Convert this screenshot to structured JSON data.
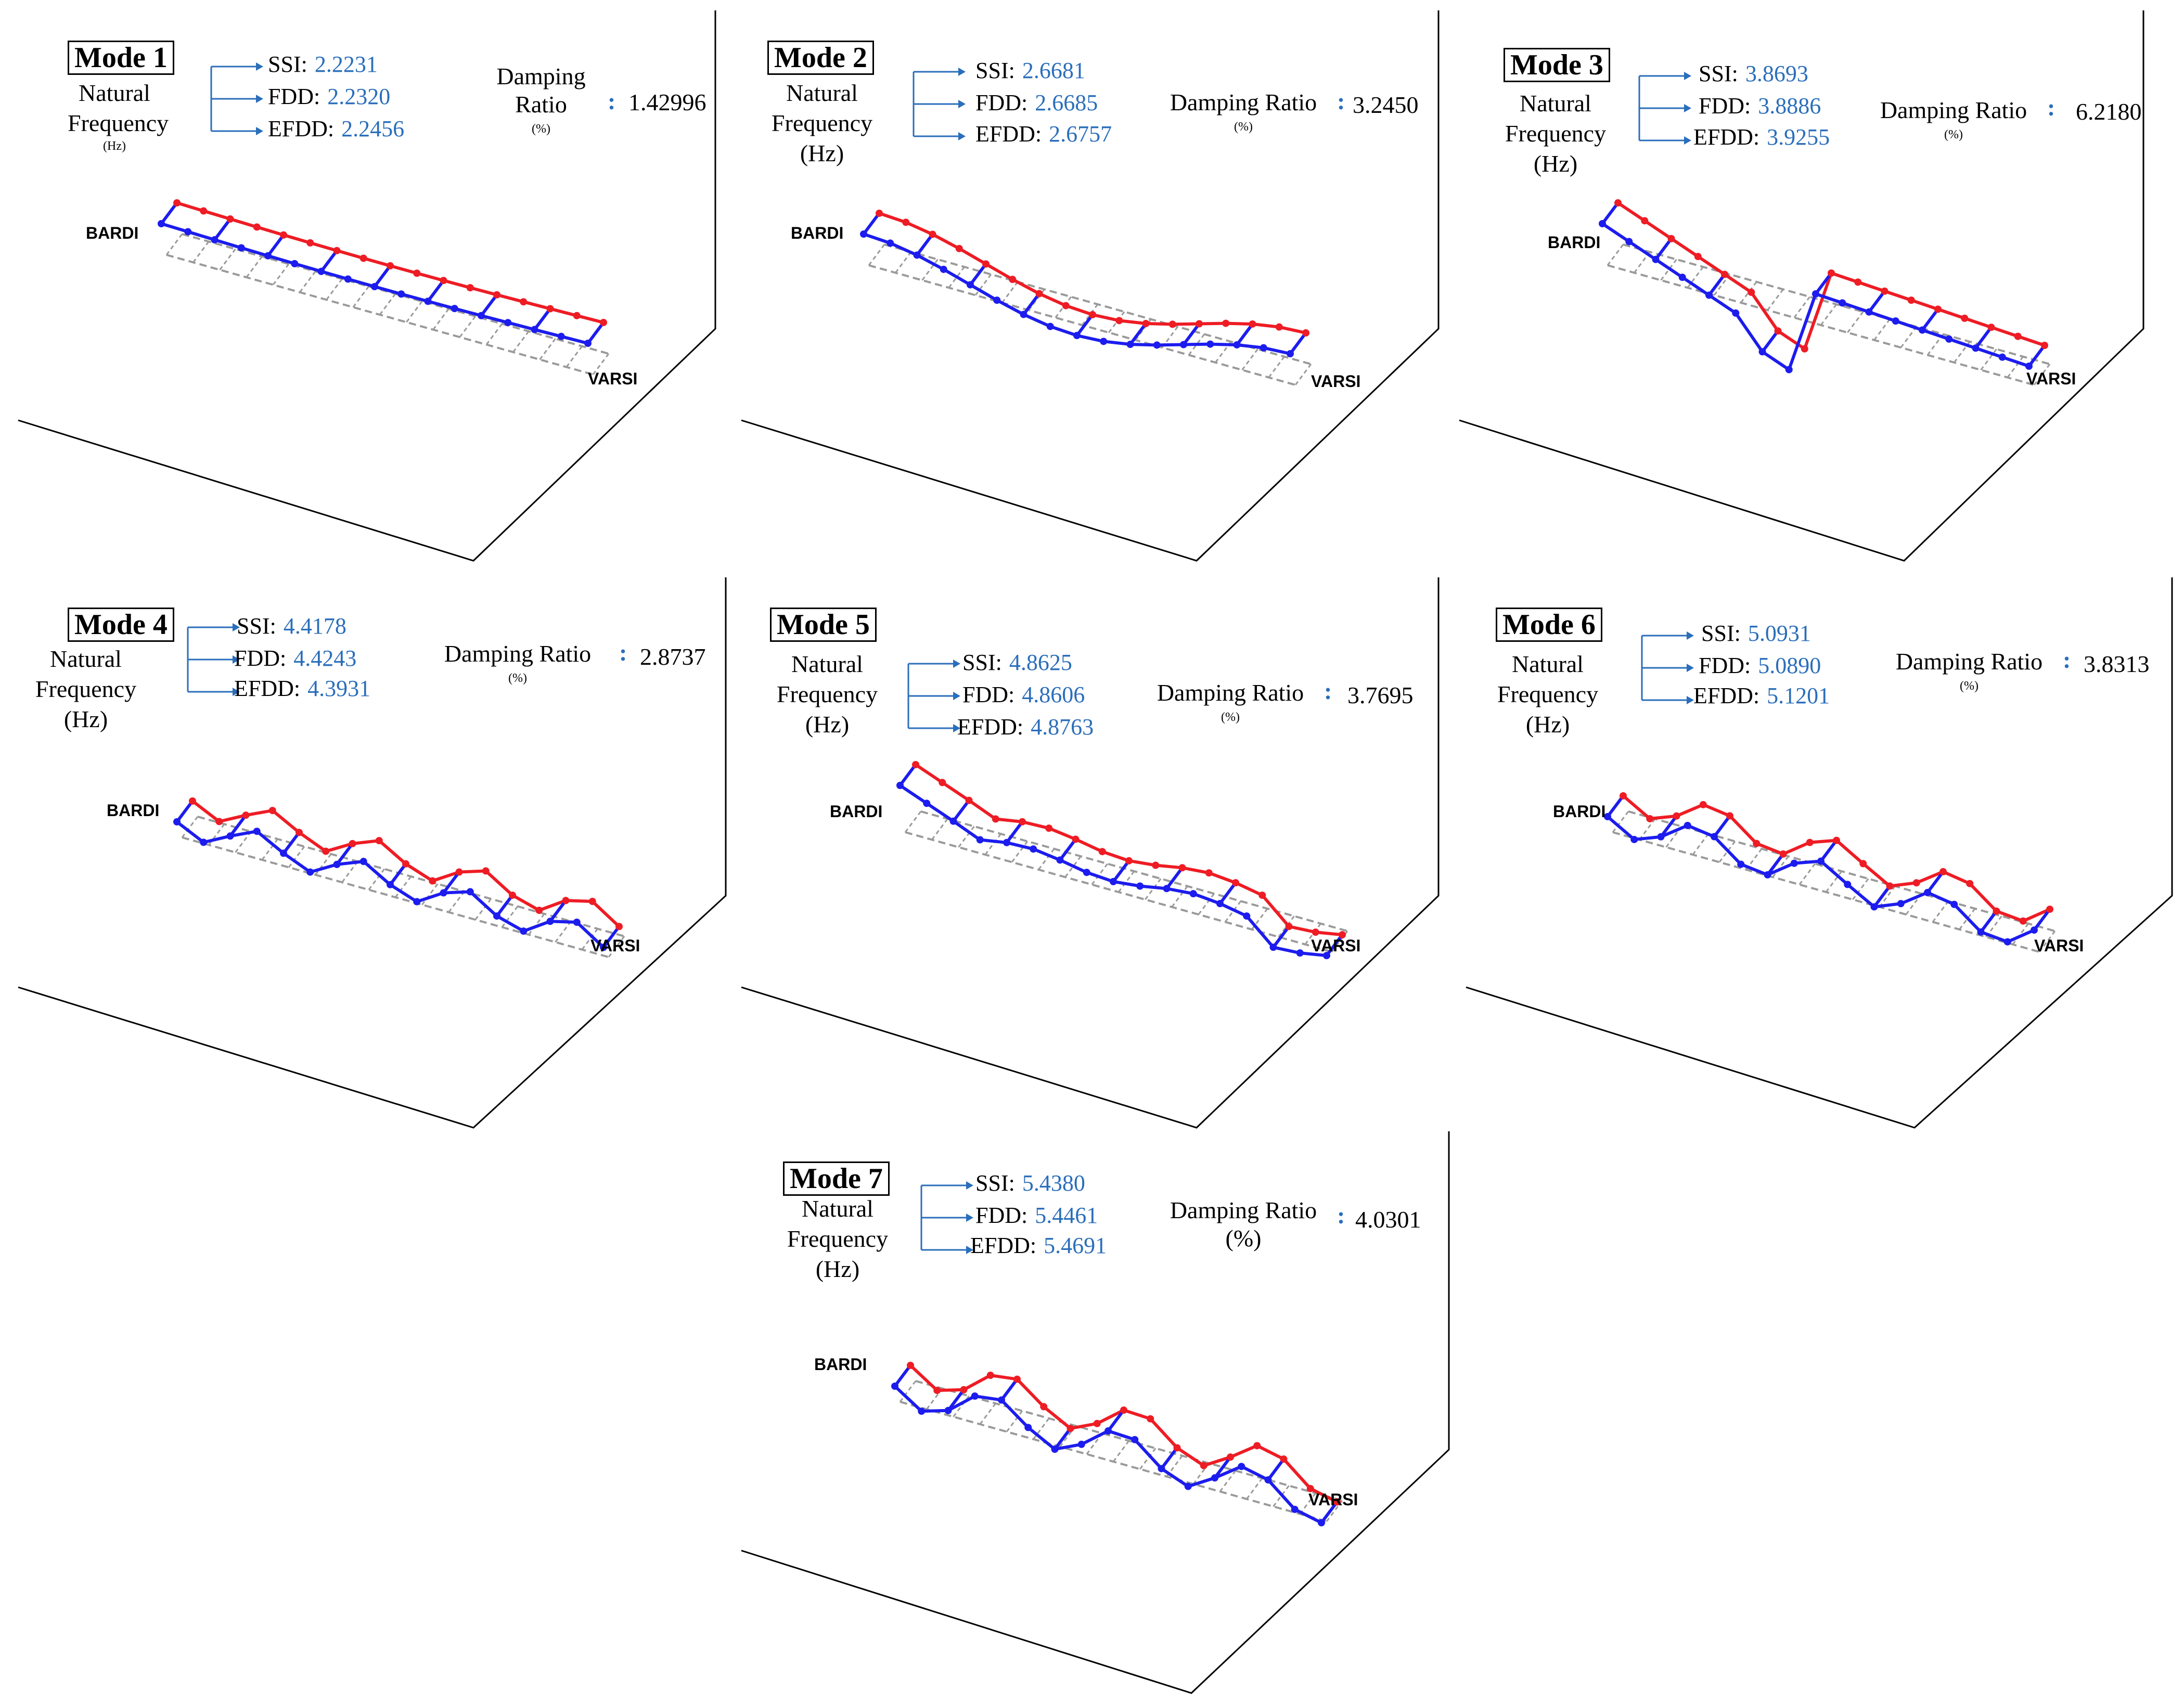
{
  "labels": {
    "natural": "Natural",
    "frequency": "Frequency",
    "hz": "(Hz)",
    "damping": "Damping",
    "ratio": "Ratio",
    "damping_ratio": "Damping Ratio",
    "percent": "(%)",
    "colon": ":",
    "ssi": "SSI:",
    "fdd": "FDD:",
    "efdd": "EFDD:",
    "start": "BARDI",
    "end": "VARSI"
  },
  "colors": {
    "deformed_top": "#ee1c24",
    "deformed_bottom": "#1c1cee",
    "undeformed": "#9a9a9a",
    "value_blue": "#2a6ebb"
  },
  "modes": [
    {
      "title": "Mode 1",
      "ssi": "2.2231",
      "fdd": "2.2320",
      "efdd": "2.2456",
      "damping": "1.42996"
    },
    {
      "title": "Mode 2",
      "ssi": "2.6681",
      "fdd": "2.6685",
      "efdd": "2.6757",
      "damping": "3.2450"
    },
    {
      "title": "Mode 3",
      "ssi": "3.8693",
      "fdd": "3.8886",
      "efdd": "3.9255",
      "damping": "6.2180"
    },
    {
      "title": "Mode 4",
      "ssi": "4.4178",
      "fdd": "4.4243",
      "efdd": "4.3931",
      "damping": "2.8737"
    },
    {
      "title": "Mode 5",
      "ssi": "4.8625",
      "fdd": "4.8606",
      "efdd": "4.8763",
      "damping": "3.7695"
    },
    {
      "title": "Mode 6",
      "ssi": "5.0931",
      "fdd": "5.0890",
      "efdd": "5.1201",
      "damping": "3.8313"
    },
    {
      "title": "Mode 7",
      "ssi": "5.4380",
      "fdd": "5.4461",
      "efdd": "5.4691",
      "damping": "4.0301"
    }
  ]
}
